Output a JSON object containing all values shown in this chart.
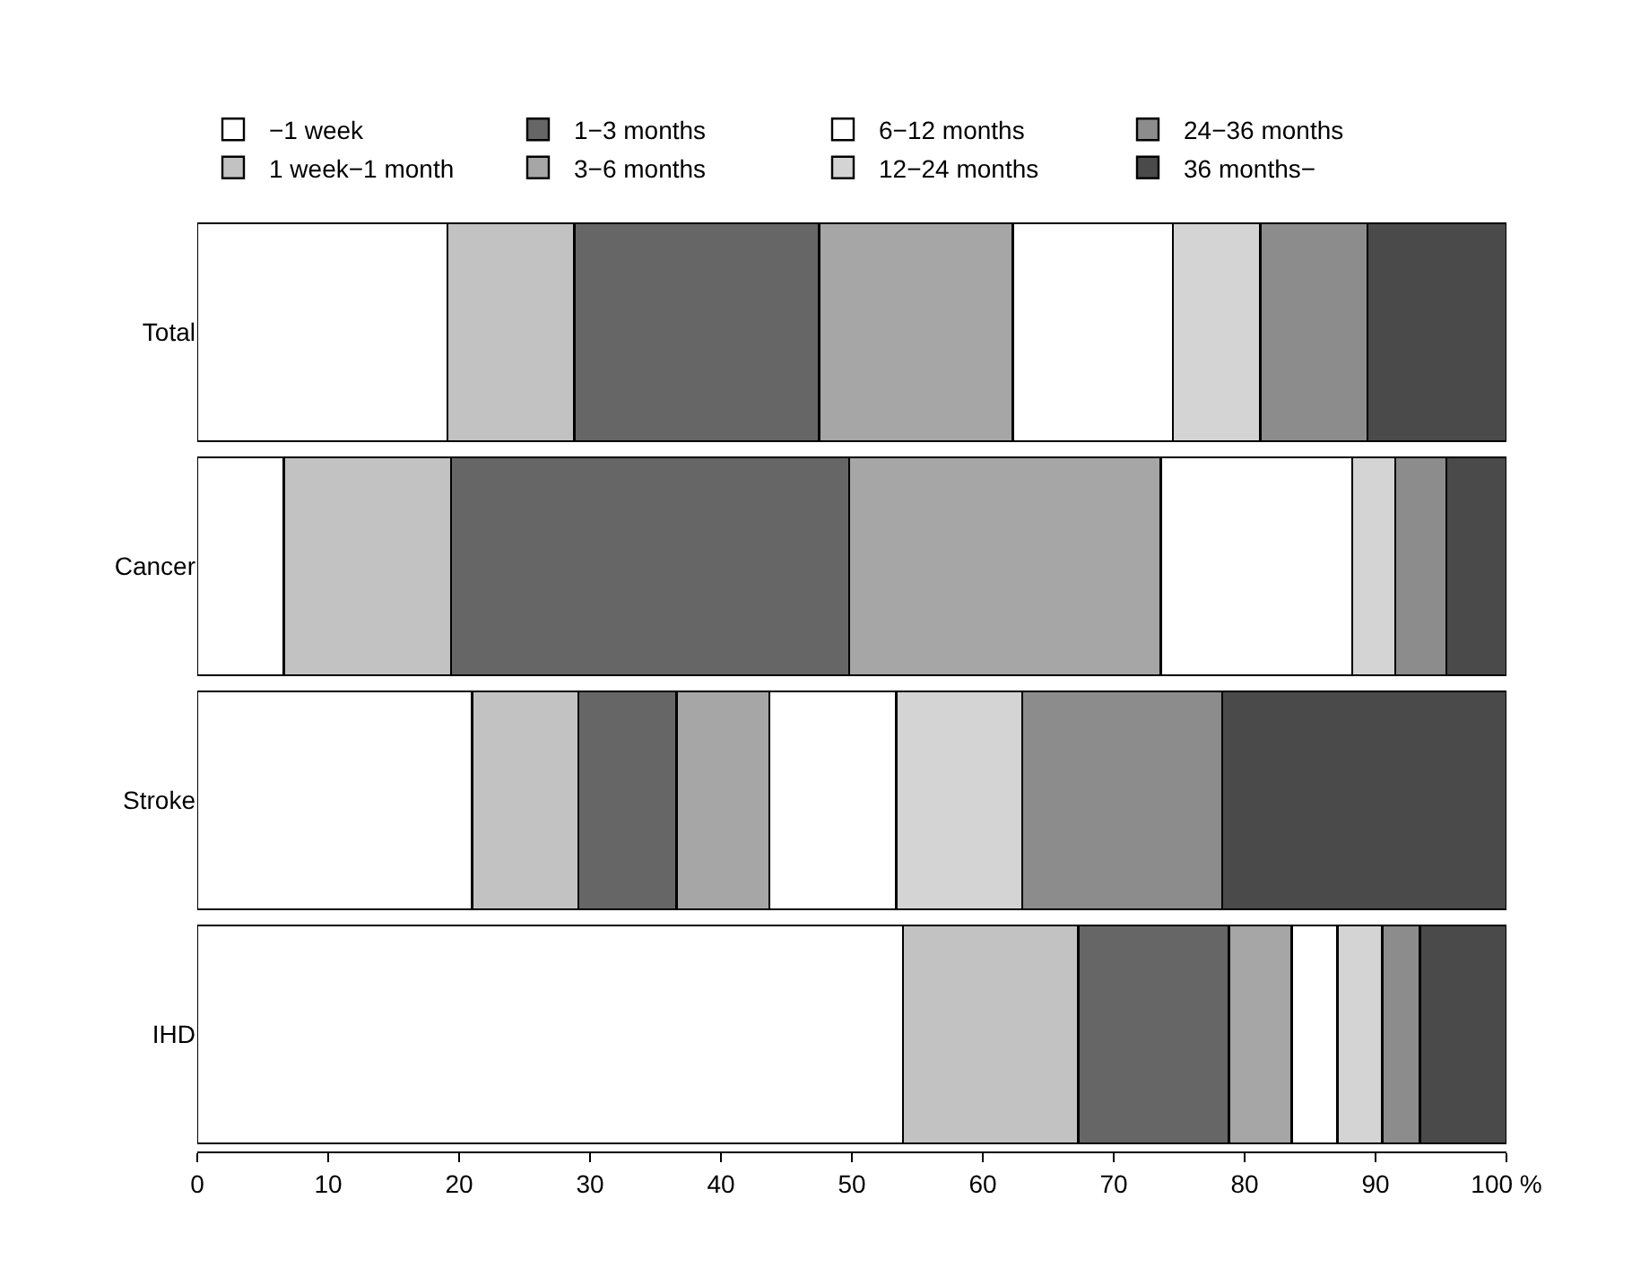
{
  "chart_data": {
    "type": "bar",
    "orientation": "horizontal",
    "stacked": true,
    "categories": [
      "Total",
      "Cancer",
      "Stroke",
      "IHD"
    ],
    "series": [
      {
        "name": "−1 week",
        "color": "#ffffff",
        "values": [
          19.1,
          6.6,
          21.0,
          53.9
        ]
      },
      {
        "name": "1 week−1 month",
        "color": "#c2c2c2",
        "values": [
          9.7,
          12.8,
          8.1,
          13.4
        ]
      },
      {
        "name": "1−3 months",
        "color": "#666666",
        "values": [
          18.7,
          30.4,
          7.5,
          11.5
        ]
      },
      {
        "name": "3−6 months",
        "color": "#a6a6a6",
        "values": [
          14.8,
          23.8,
          7.1,
          4.8
        ]
      },
      {
        "name": "6−12 months",
        "color": "#ffffff",
        "values": [
          12.2,
          14.6,
          9.7,
          3.5
        ]
      },
      {
        "name": "12−24 months",
        "color": "#d4d4d4",
        "values": [
          6.7,
          3.3,
          9.6,
          3.4
        ]
      },
      {
        "name": "24−36 months",
        "color": "#8c8c8c",
        "values": [
          8.2,
          3.9,
          15.3,
          2.9
        ]
      },
      {
        "name": "36 months−",
        "color": "#4a4a4a",
        "values": [
          10.6,
          4.6,
          21.7,
          6.6
        ]
      }
    ],
    "xlim": [
      0,
      100
    ],
    "xticks": [
      0,
      10,
      20,
      30,
      40,
      50,
      60,
      70,
      80,
      90,
      {
        "value": 100,
        "label": "100 %"
      }
    ],
    "legend": "top"
  }
}
